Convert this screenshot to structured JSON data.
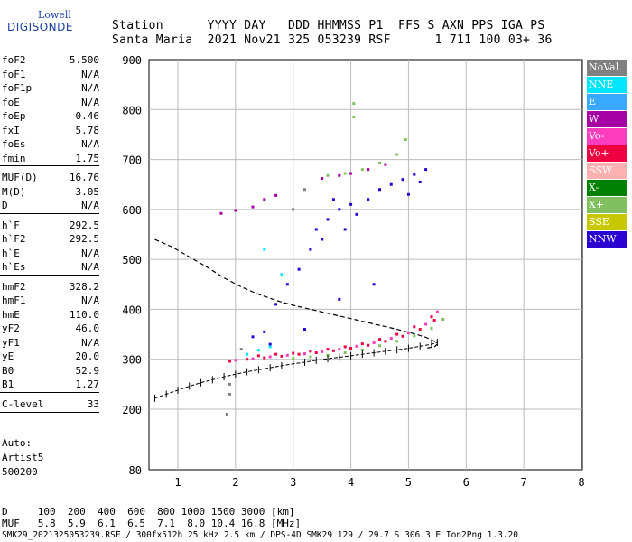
{
  "logo": {
    "top": "Lowell",
    "main": "DIGISONDE"
  },
  "header": {
    "line1": "Station      YYYY DAY   DDD HHMMSS P1  FFS S AXN PPS IGA PS",
    "line2": "Santa Maria  2021 Nov21 325 053239 RSF      1 711 100 03+ 36"
  },
  "params": [
    {
      "label": "foF2",
      "value": "5.500"
    },
    {
      "label": "foF1",
      "value": "N/A"
    },
    {
      "label": "foF1p",
      "value": "N/A"
    },
    {
      "label": "foE",
      "value": "N/A"
    },
    {
      "label": "foEp",
      "value": "0.46"
    },
    {
      "label": "fxI",
      "value": "5.78"
    },
    {
      "label": "foEs",
      "value": "N/A"
    },
    {
      "label": "fmin",
      "value": "1.75"
    },
    {
      "label": "MUF(D)",
      "value": "16.76"
    },
    {
      "label": "M(D)",
      "value": "3.05"
    },
    {
      "label": "D",
      "value": "N/A"
    },
    {
      "label": "h`F",
      "value": "292.5"
    },
    {
      "label": "h`F2",
      "value": "292.5"
    },
    {
      "label": "h`E",
      "value": "N/A"
    },
    {
      "label": "h`Es",
      "value": "N/A"
    },
    {
      "label": "hmF2",
      "value": "328.2"
    },
    {
      "label": "hmF1",
      "value": "N/A"
    },
    {
      "label": "hmE",
      "value": "110.0"
    },
    {
      "label": "yF2",
      "value": "46.0"
    },
    {
      "label": "yF1",
      "value": "N/A"
    },
    {
      "label": "yE",
      "value": "20.0"
    },
    {
      "label": "B0",
      "value": "52.9"
    },
    {
      "label": "B1",
      "value": "1.27"
    },
    {
      "label": "C-level",
      "value": "33"
    }
  ],
  "auto": [
    "Auto:",
    "Artist5",
    "500200"
  ],
  "footer": {
    "d_line": "D     100  200  400  600  800 1000 1500 3000 [km]",
    "muf_line": "MUF   5.8  5.9  6.1  6.5  7.1  8.0 10.4 16.8 [MHz]",
    "file_line": "SMK29_2021325053239.RSF / 300fx512h 25 kHz 2.5 km / DPS-4D SMK29 129 / 29.7 S 306.3 E Ion2Png 1.3.20"
  },
  "legend": [
    {
      "label": "NoVal",
      "color": "#808080"
    },
    {
      "label": "NNE",
      "color": "#00e6ff"
    },
    {
      "label": "E",
      "color": "#39a9ff"
    },
    {
      "label": "W",
      "color": "#a400a4"
    },
    {
      "label": "Vo-",
      "color": "#ff3dbe"
    },
    {
      "label": "Vo+",
      "color": "#f00040"
    },
    {
      "label": "SSW",
      "color": "#ffb0b0"
    },
    {
      "label": "X-",
      "color": "#008000"
    },
    {
      "label": "X+",
      "color": "#80c060"
    },
    {
      "label": "SSE",
      "color": "#c8c800"
    },
    {
      "label": "NNW",
      "color": "#2a00d2"
    }
  ],
  "chart_data": {
    "type": "scatter",
    "xlim": [
      0.5,
      8
    ],
    "ylim": [
      80,
      900
    ],
    "x_ticks": [
      "1",
      "2",
      "3",
      "4",
      "5",
      "6",
      "7",
      "8"
    ],
    "y_ticks": [
      "80",
      "200",
      "300",
      "400",
      "500",
      "600",
      "700",
      "800",
      "900"
    ],
    "grid": true,
    "series": [
      {
        "color": "#f00040",
        "points": [
          [
            1.9,
            296
          ],
          [
            2.2,
            300
          ],
          [
            2.5,
            303
          ],
          [
            2.8,
            306
          ],
          [
            3.1,
            310
          ],
          [
            3.4,
            313
          ],
          [
            3.7,
            317
          ],
          [
            4.0,
            322
          ],
          [
            4.3,
            328
          ],
          [
            4.6,
            336
          ],
          [
            4.9,
            346
          ],
          [
            5.2,
            360
          ],
          [
            5.45,
            378
          ],
          [
            2.4,
            307
          ],
          [
            2.7,
            310
          ],
          [
            3.0,
            312
          ],
          [
            3.3,
            316
          ],
          [
            3.6,
            320
          ],
          [
            3.9,
            325
          ],
          [
            4.2,
            331
          ],
          [
            4.5,
            340
          ],
          [
            4.8,
            350
          ],
          [
            5.1,
            365
          ],
          [
            5.4,
            385
          ]
        ]
      },
      {
        "color": "#ff3dbe",
        "points": [
          [
            2.0,
            298
          ],
          [
            2.3,
            301
          ],
          [
            2.6,
            305
          ],
          [
            2.9,
            308
          ],
          [
            3.2,
            311
          ],
          [
            3.5,
            315
          ],
          [
            3.8,
            320
          ],
          [
            4.1,
            326
          ],
          [
            4.4,
            333
          ],
          [
            4.7,
            342
          ],
          [
            5.0,
            353
          ],
          [
            5.3,
            370
          ],
          [
            5.5,
            395
          ]
        ]
      },
      {
        "color": "#80c060",
        "points": [
          [
            3.0,
            302
          ],
          [
            3.3,
            305
          ],
          [
            3.6,
            308
          ],
          [
            3.9,
            313
          ],
          [
            4.2,
            319
          ],
          [
            4.5,
            327
          ],
          [
            4.8,
            336
          ],
          [
            5.1,
            347
          ],
          [
            5.4,
            362
          ],
          [
            5.6,
            380
          ],
          [
            3.6,
            668
          ],
          [
            3.9,
            672
          ],
          [
            4.2,
            680
          ],
          [
            4.5,
            693
          ],
          [
            4.8,
            710
          ],
          [
            4.95,
            740
          ],
          [
            4.05,
            785
          ],
          [
            4.05,
            812
          ]
        ]
      },
      {
        "color": "#a400a4",
        "points": [
          [
            1.75,
            592
          ],
          [
            2.0,
            598
          ],
          [
            2.3,
            605
          ],
          [
            2.5,
            620
          ],
          [
            2.7,
            628
          ],
          [
            3.5,
            662
          ],
          [
            3.8,
            668
          ],
          [
            4.0,
            672
          ],
          [
            4.3,
            680
          ],
          [
            4.6,
            690
          ]
        ]
      },
      {
        "color": "#2a00d2",
        "points": [
          [
            2.5,
            355
          ],
          [
            2.7,
            410
          ],
          [
            2.9,
            450
          ],
          [
            3.1,
            480
          ],
          [
            3.3,
            520
          ],
          [
            3.4,
            560
          ],
          [
            3.6,
            580
          ],
          [
            3.8,
            600
          ],
          [
            3.9,
            560
          ],
          [
            4.1,
            590
          ],
          [
            4.3,
            620
          ],
          [
            4.5,
            640
          ],
          [
            4.7,
            650
          ],
          [
            4.9,
            660
          ],
          [
            5.1,
            670
          ],
          [
            5.3,
            680
          ],
          [
            3.5,
            540
          ],
          [
            3.7,
            620
          ],
          [
            4.0,
            610
          ],
          [
            2.6,
            330
          ],
          [
            3.2,
            360
          ],
          [
            3.8,
            420
          ],
          [
            4.4,
            450
          ],
          [
            2.3,
            345
          ],
          [
            5.0,
            630
          ],
          [
            5.2,
            655
          ]
        ]
      },
      {
        "color": "#00e6ff",
        "points": [
          [
            2.2,
            310
          ],
          [
            2.4,
            318
          ],
          [
            2.6,
            325
          ],
          [
            2.8,
            470
          ],
          [
            2.5,
            520
          ]
        ]
      },
      {
        "color": "#808080",
        "points": [
          [
            1.9,
            250
          ],
          [
            1.9,
            230
          ],
          [
            1.85,
            190
          ],
          [
            2.1,
            320
          ],
          [
            3.0,
            600
          ],
          [
            3.2,
            640
          ]
        ]
      }
    ],
    "virtual_height_curve": [
      [
        0.6,
        222
      ],
      [
        0.8,
        230
      ],
      [
        1.0,
        238
      ],
      [
        1.2,
        246
      ],
      [
        1.4,
        253
      ],
      [
        1.6,
        259
      ],
      [
        1.8,
        265
      ],
      [
        2.0,
        270
      ],
      [
        2.2,
        275
      ],
      [
        2.4,
        279
      ],
      [
        2.6,
        283
      ],
      [
        2.8,
        287
      ],
      [
        3.0,
        291
      ],
      [
        3.2,
        294
      ],
      [
        3.4,
        298
      ],
      [
        3.6,
        301
      ],
      [
        3.8,
        304
      ],
      [
        4.0,
        307
      ],
      [
        4.2,
        310
      ],
      [
        4.4,
        313
      ],
      [
        4.6,
        316
      ],
      [
        4.8,
        319
      ],
      [
        5.0,
        322
      ],
      [
        5.2,
        326
      ],
      [
        5.4,
        330
      ],
      [
        5.5,
        334
      ]
    ],
    "true_height_curve": [
      [
        0.6,
        540
      ],
      [
        0.9,
        525
      ],
      [
        1.2,
        505
      ],
      [
        1.5,
        485
      ],
      [
        1.8,
        463
      ],
      [
        2.1,
        445
      ],
      [
        2.4,
        430
      ],
      [
        2.7,
        418
      ],
      [
        3.0,
        408
      ],
      [
        3.3,
        400
      ],
      [
        3.6,
        392
      ],
      [
        3.9,
        384
      ],
      [
        4.2,
        376
      ],
      [
        4.5,
        368
      ],
      [
        4.8,
        360
      ],
      [
        5.1,
        351
      ],
      [
        5.3,
        344
      ],
      [
        5.45,
        336
      ],
      [
        5.5,
        330
      ],
      [
        5.45,
        325
      ],
      [
        5.3,
        322
      ]
    ]
  }
}
